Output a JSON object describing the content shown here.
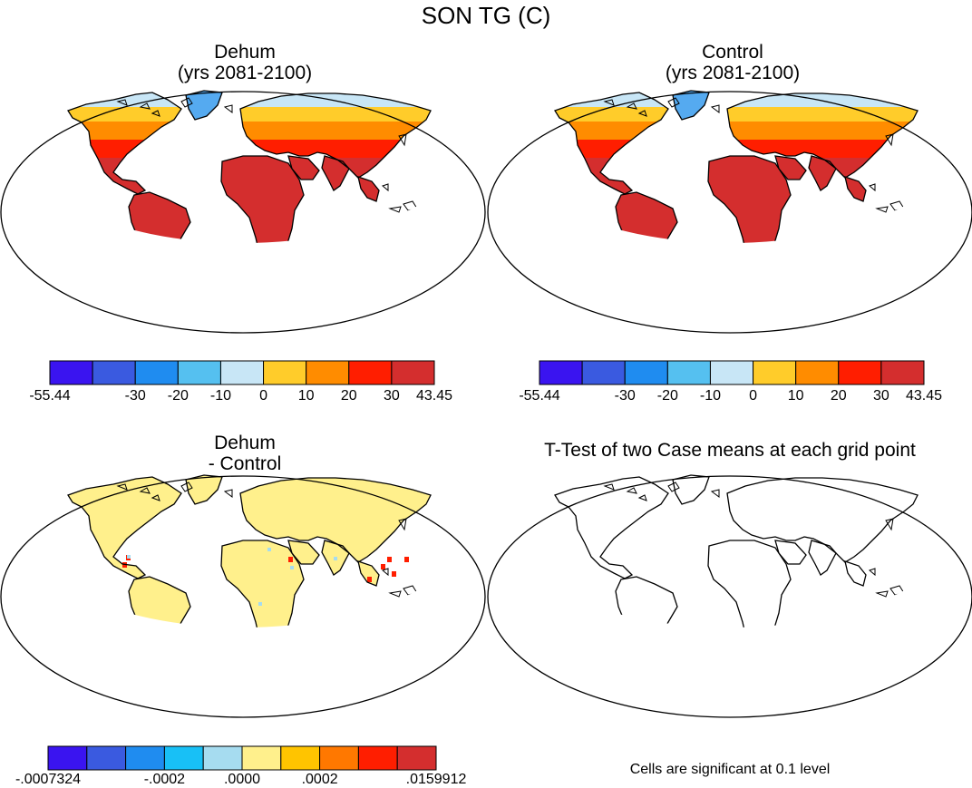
{
  "figure_title": "SON TG (C)",
  "panels": [
    {
      "id": "dehum",
      "title_line1": "Dehum",
      "title_line2": "(yrs 2081-2100)",
      "colorbar": {
        "colors": [
          "#3a14f0",
          "#3a5ae0",
          "#1f8cf0",
          "#55c0f0",
          "#c8e6f6",
          "#ffcc2a",
          "#ff8c00",
          "#ff1e00",
          "#d42e2e"
        ],
        "tick_labels": [
          "-55.44",
          "-30",
          "-20",
          "-10",
          "0",
          "10",
          "20",
          "30",
          "43.45"
        ]
      }
    },
    {
      "id": "control",
      "title_line1": "Control",
      "title_line2": "(yrs 2081-2100)",
      "colorbar": {
        "colors": [
          "#3a14f0",
          "#3a5ae0",
          "#1f8cf0",
          "#55c0f0",
          "#c8e6f6",
          "#ffcc2a",
          "#ff8c00",
          "#ff1e00",
          "#d42e2e"
        ],
        "tick_labels": [
          "-55.44",
          "-30",
          "-20",
          "-10",
          "0",
          "10",
          "20",
          "30",
          "43.45"
        ]
      }
    },
    {
      "id": "difference",
      "title_line1": "Dehum",
      "title_line2": "- Control",
      "colorbar": {
        "colors": [
          "#3a14f0",
          "#3a5ae0",
          "#1f8cf0",
          "#18c0f6",
          "#a6dcf0",
          "#fff08c",
          "#ffc400",
          "#ff7800",
          "#ff1e00",
          "#d42e2e"
        ],
        "tick_labels": [
          "-.0007324",
          "-.0002",
          ".0000",
          ".0002",
          ".0159912"
        ]
      }
    },
    {
      "id": "ttest",
      "title_line1": "T-Test of two Case means at each grid point",
      "note": "Cells are significant at 0.1 level"
    }
  ],
  "map_colors": {
    "ocean": "#ffffff",
    "coast": "#000000",
    "tropical": "#d42e2e",
    "warm": "#ff1e00",
    "mild": "#ff8c00",
    "cool": "#ffcc2a",
    "cold_land": "#c8e6f6",
    "greenland": "#55aaf0",
    "ice_light": "#3a5ae0",
    "ice_deep": "#3a14f0",
    "diff_land": "#fff08c",
    "diff_hot": "#ff1e00"
  }
}
